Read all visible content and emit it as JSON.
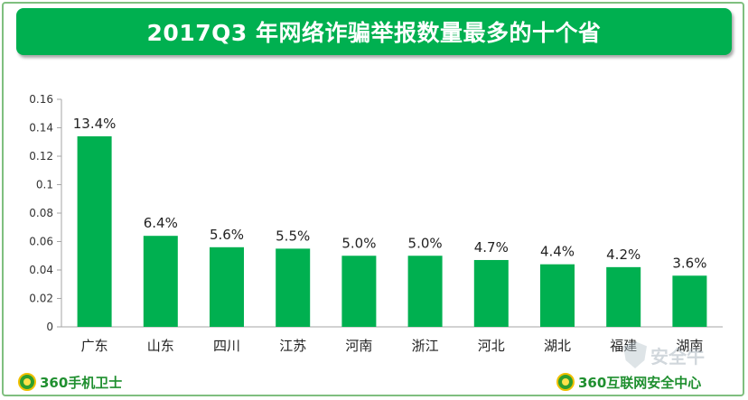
{
  "header": {
    "title": "2017Q3 年网络诈骗举报数量最多的十个省"
  },
  "footer": {
    "left_logo": "360手机卫士",
    "right_logo": "360互联网安全中心",
    "watermark": "安全牛"
  },
  "chart_data": {
    "type": "bar",
    "categories": [
      "广东",
      "山东",
      "四川",
      "江苏",
      "河南",
      "浙江",
      "河北",
      "湖北",
      "福建",
      "湖南"
    ],
    "values": [
      0.134,
      0.064,
      0.056,
      0.055,
      0.05,
      0.05,
      0.047,
      0.044,
      0.042,
      0.036
    ],
    "data_labels": [
      "13.4%",
      "6.4%",
      "5.6%",
      "5.5%",
      "5.0%",
      "5.0%",
      "4.7%",
      "4.4%",
      "4.2%",
      "3.6%"
    ],
    "title": "2017Q3 年网络诈骗举报数量最多的十个省",
    "xlabel": "",
    "ylabel": "",
    "ylim": [
      0,
      0.16
    ],
    "yticks": [
      0,
      0.02,
      0.04,
      0.06,
      0.08,
      0.1,
      0.12,
      0.14,
      0.16
    ],
    "ytick_labels": [
      "0",
      "0.02",
      "0.04",
      "0.06",
      "0.08",
      "0.1",
      "0.12",
      "0.14",
      "0.16"
    ],
    "grid": false,
    "legend": "none",
    "bar_color": "#00b050"
  }
}
